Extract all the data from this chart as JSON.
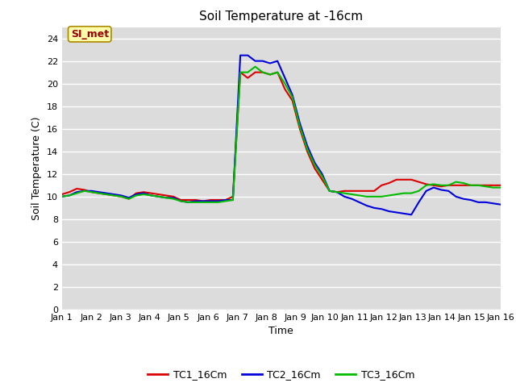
{
  "title": "Soil Temperature at -16cm",
  "xlabel": "Time",
  "ylabel": "Soil Temperature (C)",
  "ylim": [
    0,
    25
  ],
  "yticks": [
    0,
    2,
    4,
    6,
    8,
    10,
    12,
    14,
    16,
    18,
    20,
    22,
    24
  ],
  "background_color": "#dcdcdc",
  "legend_label": "SI_met",
  "x_labels": [
    "Jan 1",
    "Jan 2",
    "Jan 3",
    "Jan 4",
    "Jan 5",
    "Jan 6",
    "Jan 7",
    "Jan 8",
    "Jan 9",
    "Jan 10",
    "Jan 11",
    "Jan 12",
    "Jan 13",
    "Jan 14",
    "Jan 15",
    "Jan 16"
  ],
  "TC1_16Cm": [
    10.2,
    10.4,
    10.7,
    10.6,
    10.4,
    10.3,
    10.2,
    10.1,
    10.0,
    9.8,
    10.3,
    10.4,
    10.3,
    10.2,
    10.1,
    10.0,
    9.7,
    9.7,
    9.7,
    9.6,
    9.7,
    9.7,
    9.7,
    10.0,
    21.0,
    20.5,
    21.0,
    21.0,
    20.8,
    21.0,
    19.5,
    18.5,
    16.0,
    14.0,
    12.5,
    11.5,
    10.5,
    10.4,
    10.5,
    10.5,
    10.5,
    10.5,
    10.5,
    11.0,
    11.2,
    11.5,
    11.5,
    11.5,
    11.3,
    11.1,
    11.0,
    10.9,
    11.0,
    11.0,
    11.0,
    11.0,
    11.0,
    11.0,
    11.0,
    11.0
  ],
  "TC2_16Cm": [
    10.0,
    10.1,
    10.4,
    10.5,
    10.5,
    10.4,
    10.3,
    10.2,
    10.1,
    9.9,
    10.2,
    10.3,
    10.1,
    10.0,
    9.9,
    9.9,
    9.6,
    9.5,
    9.6,
    9.6,
    9.6,
    9.6,
    9.7,
    9.7,
    22.5,
    22.5,
    22.0,
    22.0,
    21.8,
    22.0,
    20.5,
    19.0,
    16.5,
    14.5,
    13.0,
    12.0,
    10.5,
    10.4,
    10.0,
    9.8,
    9.5,
    9.2,
    9.0,
    8.9,
    8.7,
    8.6,
    8.5,
    8.4,
    9.5,
    10.5,
    10.8,
    10.6,
    10.5,
    10.0,
    9.8,
    9.7,
    9.5,
    9.5,
    9.4,
    9.3
  ],
  "TC3_16Cm": [
    10.0,
    10.1,
    10.3,
    10.5,
    10.4,
    10.3,
    10.2,
    10.1,
    10.0,
    9.8,
    10.1,
    10.2,
    10.1,
    10.0,
    9.9,
    9.8,
    9.6,
    9.5,
    9.5,
    9.5,
    9.5,
    9.5,
    9.6,
    9.7,
    21.0,
    21.0,
    21.5,
    21.0,
    20.8,
    21.0,
    20.0,
    18.8,
    16.2,
    14.2,
    12.8,
    11.8,
    10.5,
    10.4,
    10.3,
    10.2,
    10.1,
    10.0,
    10.0,
    10.0,
    10.1,
    10.2,
    10.3,
    10.3,
    10.5,
    11.0,
    11.1,
    11.0,
    11.0,
    11.3,
    11.2,
    11.0,
    11.0,
    10.9,
    10.8,
    10.8
  ],
  "line_colors": [
    "#dd0000",
    "#0000dd",
    "#00bb00"
  ],
  "line_width": 1.5,
  "legend_box_facecolor": "#ffffaa",
  "legend_box_edgecolor": "#aa8800",
  "legend_text_color": "#990000",
  "title_fontsize": 11,
  "axis_label_fontsize": 9,
  "tick_fontsize": 8
}
